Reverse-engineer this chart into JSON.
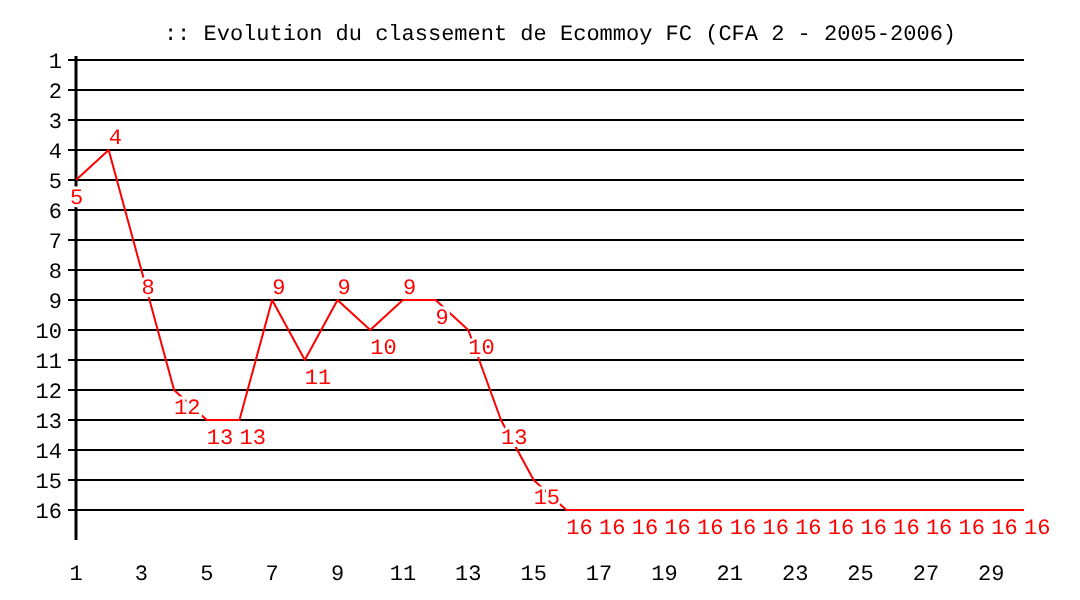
{
  "chart_data": {
    "type": "line",
    "title": ":: Evolution du classement de Ecommoy FC (CFA 2 - 2005-2006)",
    "x": [
      1,
      2,
      3,
      4,
      5,
      6,
      7,
      8,
      9,
      10,
      11,
      12,
      13,
      14,
      15,
      16,
      17,
      18,
      19,
      20,
      21,
      22,
      23,
      24,
      25,
      26,
      27,
      28,
      29,
      30
    ],
    "series": [
      {
        "color": "#ff0000",
        "values": [
          5,
          4,
          8,
          12,
          13,
          13,
          9,
          11,
          9,
          10,
          9,
          9,
          10,
          13,
          15,
          16,
          16,
          16,
          16,
          16,
          16,
          16,
          16,
          16,
          16,
          16,
          16,
          16,
          16,
          16
        ]
      }
    ],
    "xlim": [
      1,
      30
    ],
    "xticks": [
      1,
      3,
      5,
      7,
      9,
      11,
      13,
      15,
      17,
      19,
      21,
      23,
      25,
      27,
      29
    ],
    "ylim": [
      17,
      1
    ],
    "yticks": [
      1,
      2,
      3,
      4,
      5,
      6,
      7,
      8,
      9,
      10,
      11,
      12,
      13,
      14,
      15,
      16
    ],
    "grid": "y",
    "data_labels": true,
    "marker": "none",
    "line_style": "solid"
  }
}
